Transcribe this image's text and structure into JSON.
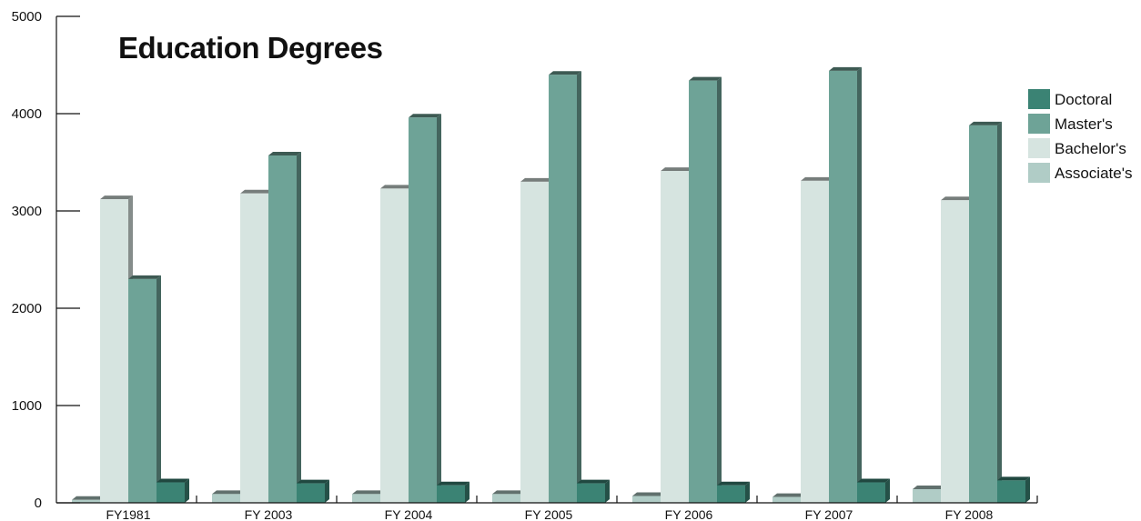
{
  "chart_data": {
    "type": "bar",
    "title": "Education Degrees",
    "xlabel": "",
    "ylabel": "",
    "ylim": [
      0,
      5000
    ],
    "yticks": [
      0,
      1000,
      2000,
      3000,
      4000,
      5000
    ],
    "grid": false,
    "legend_position": "right",
    "categories": [
      "FY1981",
      "FY 2003",
      "FY 2004",
      "FY 2005",
      "FY 2006",
      "FY 2007",
      "FY 2008"
    ],
    "series": [
      {
        "name": "Associate's",
        "color": "#b0ccc6",
        "values": [
          30,
          90,
          90,
          90,
          70,
          60,
          140
        ]
      },
      {
        "name": "Bachelor's",
        "color": "#d6e4e0",
        "values": [
          3120,
          3180,
          3230,
          3300,
          3410,
          3310,
          3110
        ]
      },
      {
        "name": "Master's",
        "color": "#6ea397",
        "values": [
          2300,
          3570,
          3960,
          4400,
          4340,
          4440,
          3880
        ]
      },
      {
        "name": "Doctoral",
        "color": "#3b8374",
        "values": [
          210,
          200,
          180,
          200,
          180,
          210,
          230
        ]
      }
    ],
    "legend_order": [
      "Doctoral",
      "Master's",
      "Bachelor's",
      "Associate's"
    ]
  }
}
